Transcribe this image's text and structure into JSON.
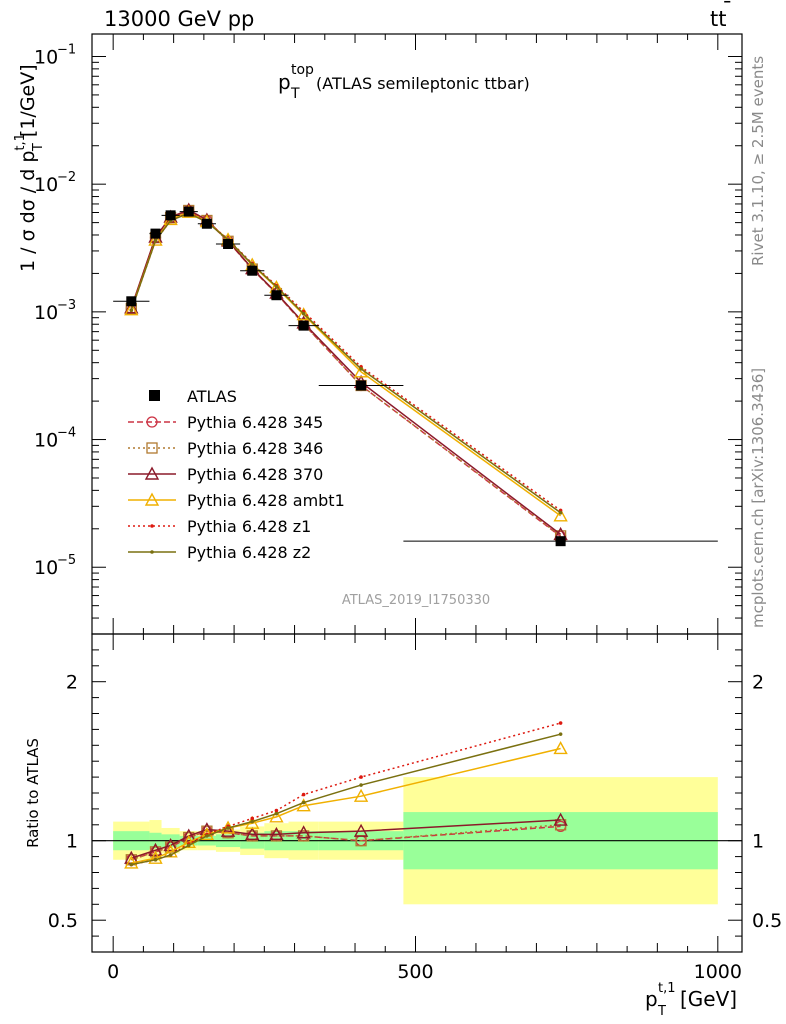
{
  "header": {
    "left": "13000 GeV pp",
    "right_main": "tt",
    "right_bar": "¯"
  },
  "side": {
    "rivet": "Rivet 3.1.10, ≥ 2.5M events",
    "mcplots": "mcplots.cern.ch [arXiv:1306.3436]"
  },
  "plot_title": {
    "main": "p",
    "sup": "top",
    "sub": "T",
    "rest": " (ATLAS semileptonic ttbar)"
  },
  "analysis_label": "ATLAS_2019_I1750330",
  "main_ylabel": {
    "pre": "1 / σ dσ / d p",
    "sup": "t,1",
    "sub": "T",
    "post": " [1/GeV]"
  },
  "ratio_ylabel": "Ratio to ATLAS",
  "xlabel": {
    "main": "p",
    "sup": "t,1",
    "sub": "T",
    "post": " [GeV]"
  },
  "colors": {
    "ATLAS": "#000000",
    "p345": "#cc3344",
    "p346": "#b07a30",
    "p370": "#8b1a2a",
    "ambt1": "#f0b000",
    "z1": "#dd1a10",
    "z2": "#7a7010",
    "band_inner": "#99ff99",
    "band_outer": "#ffff99"
  },
  "chart_data": {
    "type": "line",
    "x_scale": "linear",
    "y_scale_main": "log",
    "xlim": [
      -35,
      1040
    ],
    "main_ylim": [
      3e-06,
      0.15
    ],
    "ratio_ylim": [
      0.3,
      2.3
    ],
    "x_ticks": [
      0,
      500,
      1000
    ],
    "x_tick_labels": [
      "0",
      "500",
      "1000"
    ],
    "main_y_ticks": [
      {
        "base": "10",
        "exp": "−5",
        "value": 1e-05
      },
      {
        "base": "10",
        "exp": "−4",
        "value": 0.0001
      },
      {
        "base": "10",
        "exp": "−3",
        "value": 0.001
      },
      {
        "base": "10",
        "exp": "−2",
        "value": 0.01
      },
      {
        "base": "10",
        "exp": "−1",
        "value": 0.1
      }
    ],
    "ratio_y_ticks": [
      {
        "label": "0.5",
        "value": 0.5
      },
      {
        "label": "1",
        "value": 1
      },
      {
        "label": "2",
        "value": 2
      }
    ],
    "bins": [
      {
        "lo": 0,
        "hi": 60
      },
      {
        "lo": 60,
        "hi": 80
      },
      {
        "lo": 80,
        "hi": 110
      },
      {
        "lo": 110,
        "hi": 140
      },
      {
        "lo": 140,
        "hi": 170
      },
      {
        "lo": 170,
        "hi": 210
      },
      {
        "lo": 210,
        "hi": 250
      },
      {
        "lo": 250,
        "hi": 290
      },
      {
        "lo": 290,
        "hi": 340
      },
      {
        "lo": 340,
        "hi": 480
      },
      {
        "lo": 480,
        "hi": 1000
      }
    ],
    "x": [
      30,
      70,
      95,
      125,
      155,
      190,
      230,
      270,
      315,
      410,
      740
    ],
    "data": {
      "name": "ATLAS",
      "values": [
        0.00121,
        0.0041,
        0.0057,
        0.0061,
        0.0049,
        0.0034,
        0.0021,
        0.00135,
        0.00078,
        0.000265,
        1.6e-05
      ],
      "err_inner": [
        0.06,
        0.05,
        0.04,
        0.03,
        0.03,
        0.04,
        0.05,
        0.06,
        0.06,
        0.06,
        0.18
      ],
      "err_outer": [
        0.12,
        0.13,
        0.08,
        0.06,
        0.06,
        0.07,
        0.09,
        0.11,
        0.12,
        0.12,
        0.4
      ]
    },
    "series": [
      {
        "name": "Pythia 6.428 345",
        "style": "dashed",
        "marker": "circle",
        "color_key": "p345",
        "ratio": [
          0.88,
          0.93,
          0.96,
          1.02,
          1.06,
          1.05,
          1.03,
          1.03,
          1.03,
          1.0,
          1.09
        ]
      },
      {
        "name": "Pythia 6.428 346",
        "style": "dotted",
        "marker": "square",
        "color_key": "p346",
        "ratio": [
          0.88,
          0.93,
          0.96,
          1.02,
          1.06,
          1.05,
          1.03,
          1.03,
          1.03,
          1.0,
          1.1
        ]
      },
      {
        "name": "Pythia 6.428 370",
        "style": "solid",
        "marker": "triangle",
        "color_key": "p370",
        "ratio": [
          0.89,
          0.94,
          0.97,
          1.03,
          1.07,
          1.06,
          1.04,
          1.04,
          1.05,
          1.06,
          1.13
        ]
      },
      {
        "name": "Pythia 6.428 ambt1",
        "style": "solid",
        "marker": "triangle",
        "color_key": "ambt1",
        "ratio": [
          0.86,
          0.89,
          0.93,
          0.99,
          1.04,
          1.08,
          1.11,
          1.15,
          1.22,
          1.28,
          1.58
        ]
      },
      {
        "name": "Pythia 6.428 z1",
        "style": "dotted",
        "marker": "dot",
        "color_key": "z1",
        "ratio": [
          0.85,
          0.88,
          0.91,
          0.98,
          1.04,
          1.09,
          1.14,
          1.19,
          1.29,
          1.4,
          1.74
        ]
      },
      {
        "name": "Pythia 6.428 z2",
        "style": "solid",
        "marker": "dot",
        "color_key": "z2",
        "ratio": [
          0.85,
          0.88,
          0.91,
          0.97,
          1.03,
          1.08,
          1.12,
          1.17,
          1.24,
          1.35,
          1.67
        ]
      }
    ]
  }
}
